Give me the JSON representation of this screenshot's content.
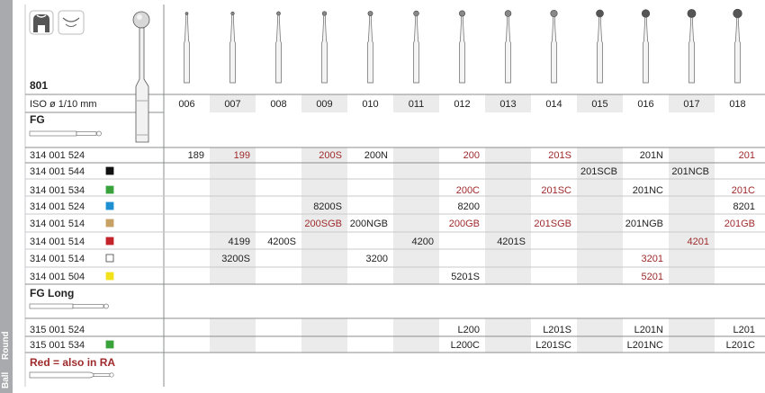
{
  "side_label_ball": "Ball",
  "side_label_round": "Round",
  "ref_number": "801",
  "iso_label": "ISO ø 1/10 mm",
  "sizes": [
    "006",
    "007",
    "008",
    "009",
    "010",
    "011",
    "012",
    "013",
    "014",
    "015",
    "016",
    "017",
    "018"
  ],
  "groups": [
    {
      "heading": "FG"
    },
    {
      "heading": "FG Long"
    }
  ],
  "note": "Red = also in RA",
  "colors": {
    "red_text": "#9e2a2b",
    "dark_text": "#222222",
    "shade": "#ebebec"
  },
  "icons": [
    "bur-shank-icon",
    "smile-logo-icon",
    "fg-shank-icon",
    "fg-long-shank-icon",
    "ra-shank-icon",
    "tooth-icon"
  ],
  "rows": [
    {
      "code": "314 001 524",
      "swatch": null,
      "cells": [
        {
          "col": 0,
          "v": "189",
          "red": false
        },
        {
          "col": 1,
          "v": "199",
          "red": true
        },
        {
          "col": 3,
          "v": "200S",
          "red": true
        },
        {
          "col": 4,
          "v": "200N",
          "red": false
        },
        {
          "col": 6,
          "v": "200",
          "red": true
        },
        {
          "col": 8,
          "v": "201S",
          "red": true
        },
        {
          "col": 10,
          "v": "201N",
          "red": false
        },
        {
          "col": 12,
          "v": "201",
          "red": true
        }
      ]
    },
    {
      "code": "314 001 544",
      "swatch": "#111111",
      "cells": [
        {
          "col": 9,
          "v": "201SCB",
          "red": false
        },
        {
          "col": 11,
          "v": "201NCB",
          "red": false
        }
      ]
    },
    {
      "code": "314 001 534",
      "swatch": "#3aa23a",
      "cells": [
        {
          "col": 6,
          "v": "200C",
          "red": true
        },
        {
          "col": 8,
          "v": "201SC",
          "red": true
        },
        {
          "col": 10,
          "v": "201NC",
          "red": false
        },
        {
          "col": 12,
          "v": "201C",
          "red": true
        }
      ]
    },
    {
      "code": "314 001 524",
      "swatch": "#1e8fd0",
      "cells": [
        {
          "col": 3,
          "v": "8200S",
          "red": false
        },
        {
          "col": 6,
          "v": "8200",
          "red": false
        },
        {
          "col": 12,
          "v": "8201",
          "red": false
        }
      ]
    },
    {
      "code": "314 001 514",
      "swatch": "#c8a164",
      "cells": [
        {
          "col": 3,
          "v": "200SGB",
          "red": true
        },
        {
          "col": 4,
          "v": "200NGB",
          "red": false
        },
        {
          "col": 6,
          "v": "200GB",
          "red": true
        },
        {
          "col": 8,
          "v": "201SGB",
          "red": true
        },
        {
          "col": 10,
          "v": "201NGB",
          "red": false
        },
        {
          "col": 12,
          "v": "201GB",
          "red": true
        }
      ]
    },
    {
      "code": "314 001 514",
      "swatch": "#c4232b",
      "cells": [
        {
          "col": 1,
          "v": "4199",
          "red": false
        },
        {
          "col": 2,
          "v": "4200S",
          "red": false
        },
        {
          "col": 5,
          "v": "4200",
          "red": false
        },
        {
          "col": 7,
          "v": "4201S",
          "red": false
        },
        {
          "col": 11,
          "v": "4201",
          "red": true
        }
      ]
    },
    {
      "code": "314 001 514",
      "swatch": "#ffffff",
      "cells": [
        {
          "col": 1,
          "v": "3200S",
          "red": false
        },
        {
          "col": 4,
          "v": "3200",
          "red": false
        },
        {
          "col": 10,
          "v": "3201",
          "red": true
        }
      ]
    },
    {
      "code": "314 001 504",
      "swatch": "#f2e21c",
      "cells": [
        {
          "col": 6,
          "v": "5201S",
          "red": false
        },
        {
          "col": 10,
          "v": "5201",
          "red": true
        }
      ]
    },
    {
      "code": "315 001 524",
      "swatch": null,
      "cells": [
        {
          "col": 6,
          "v": "L200",
          "red": false
        },
        {
          "col": 8,
          "v": "L201S",
          "red": false
        },
        {
          "col": 10,
          "v": "L201N",
          "red": false
        },
        {
          "col": 12,
          "v": "L201",
          "red": false
        }
      ]
    },
    {
      "code": "315 001 534",
      "swatch": "#3aa23a",
      "cells": [
        {
          "col": 6,
          "v": "L200C",
          "red": false
        },
        {
          "col": 8,
          "v": "L201SC",
          "red": false
        },
        {
          "col": 10,
          "v": "L201NC",
          "red": false
        },
        {
          "col": 12,
          "v": "L201C",
          "red": false
        }
      ]
    }
  ]
}
